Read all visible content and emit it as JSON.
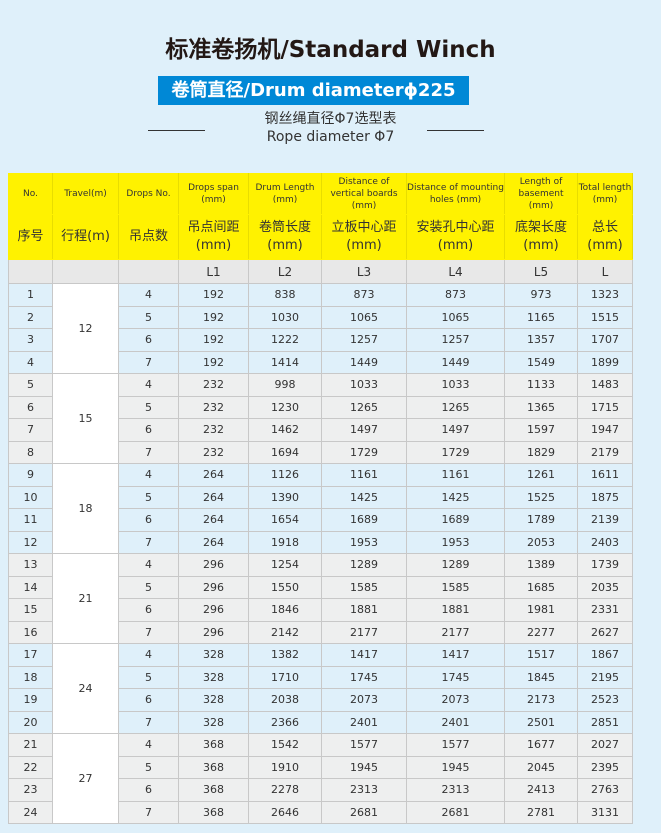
{
  "title": "标准卷扬机/Standard Winch",
  "badge": "卷筒直径/Drum diameterϕ225",
  "subtitle_cn": "钢丝绳直径Φ7选型表",
  "subtitle_en": "Rope diameter Φ7",
  "colors": {
    "background": "#dff0fa",
    "badge": "#0088d6",
    "header": "#fff200"
  },
  "headers_en": [
    "No.",
    "Travel(m)",
    "Drops No.",
    "Drops span (mm)",
    "Drum Length (mm)",
    "Distance of vertical boards (mm)",
    "Distance of mounting holes (mm)",
    "Length of basement (mm)",
    "Total length (mm)"
  ],
  "headers_cn": [
    "序号",
    "行程(m)",
    "吊点数",
    "吊点间距 (mm)",
    "卷筒长度 (mm)",
    "立板中心距 (mm)",
    "安装孔中心距 (mm)",
    "底架长度 (mm)",
    "总长 (mm)"
  ],
  "codes": [
    "",
    "",
    "",
    "L1",
    "L2",
    "L3",
    "L4",
    "L5",
    "L"
  ],
  "groups": [
    {
      "travel": "12",
      "rows": [
        [
          "1",
          "4",
          "192",
          "838",
          "873",
          "873",
          "973",
          "1323"
        ],
        [
          "2",
          "5",
          "192",
          "1030",
          "1065",
          "1065",
          "1165",
          "1515"
        ],
        [
          "3",
          "6",
          "192",
          "1222",
          "1257",
          "1257",
          "1357",
          "1707"
        ],
        [
          "4",
          "7",
          "192",
          "1414",
          "1449",
          "1449",
          "1549",
          "1899"
        ]
      ]
    },
    {
      "travel": "15",
      "rows": [
        [
          "5",
          "4",
          "232",
          "998",
          "1033",
          "1033",
          "1133",
          "1483"
        ],
        [
          "6",
          "5",
          "232",
          "1230",
          "1265",
          "1265",
          "1365",
          "1715"
        ],
        [
          "7",
          "6",
          "232",
          "1462",
          "1497",
          "1497",
          "1597",
          "1947"
        ],
        [
          "8",
          "7",
          "232",
          "1694",
          "1729",
          "1729",
          "1829",
          "2179"
        ]
      ]
    },
    {
      "travel": "18",
      "rows": [
        [
          "9",
          "4",
          "264",
          "1126",
          "1161",
          "1161",
          "1261",
          "1611"
        ],
        [
          "10",
          "5",
          "264",
          "1390",
          "1425",
          "1425",
          "1525",
          "1875"
        ],
        [
          "11",
          "6",
          "264",
          "1654",
          "1689",
          "1689",
          "1789",
          "2139"
        ],
        [
          "12",
          "7",
          "264",
          "1918",
          "1953",
          "1953",
          "2053",
          "2403"
        ]
      ]
    },
    {
      "travel": "21",
      "rows": [
        [
          "13",
          "4",
          "296",
          "1254",
          "1289",
          "1289",
          "1389",
          "1739"
        ],
        [
          "14",
          "5",
          "296",
          "1550",
          "1585",
          "1585",
          "1685",
          "2035"
        ],
        [
          "15",
          "6",
          "296",
          "1846",
          "1881",
          "1881",
          "1981",
          "2331"
        ],
        [
          "16",
          "7",
          "296",
          "2142",
          "2177",
          "2177",
          "2277",
          "2627"
        ]
      ]
    },
    {
      "travel": "24",
      "rows": [
        [
          "17",
          "4",
          "328",
          "1382",
          "1417",
          "1417",
          "1517",
          "1867"
        ],
        [
          "18",
          "5",
          "328",
          "1710",
          "1745",
          "1745",
          "1845",
          "2195"
        ],
        [
          "19",
          "6",
          "328",
          "2038",
          "2073",
          "2073",
          "2173",
          "2523"
        ],
        [
          "20",
          "7",
          "328",
          "2366",
          "2401",
          "2401",
          "2501",
          "2851"
        ]
      ]
    },
    {
      "travel": "27",
      "rows": [
        [
          "21",
          "4",
          "368",
          "1542",
          "1577",
          "1577",
          "1677",
          "2027"
        ],
        [
          "22",
          "5",
          "368",
          "1910",
          "1945",
          "1945",
          "2045",
          "2395"
        ],
        [
          "23",
          "6",
          "368",
          "2278",
          "2313",
          "2313",
          "2413",
          "2763"
        ],
        [
          "24",
          "7",
          "368",
          "2646",
          "2681",
          "2681",
          "2781",
          "3131"
        ]
      ]
    }
  ]
}
